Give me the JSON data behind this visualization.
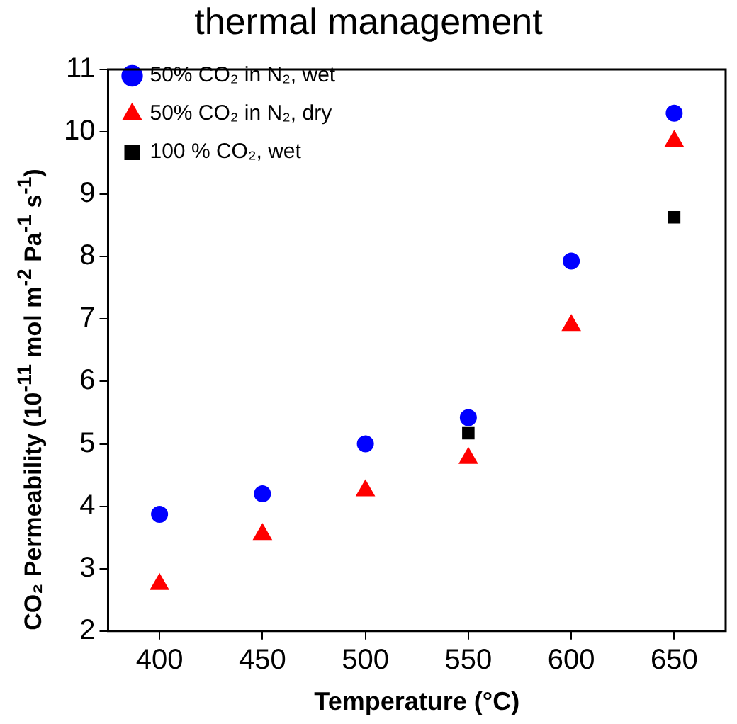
{
  "chart_data": {
    "type": "scatter",
    "title": "thermal management",
    "xlabel": "Temperature (°C)",
    "ylabel": "CO₂ Permeability (10$^{-11}$ mol m$^{-2}$ Pa$^{-1}$ s$^{-1}$)",
    "xlim": [
      375,
      675
    ],
    "xticks": [
      400,
      450,
      500,
      550,
      600,
      650
    ],
    "ylim": [
      2,
      11
    ],
    "yticks": [
      2,
      3,
      4,
      5,
      6,
      7,
      8,
      9,
      10,
      11
    ],
    "grid": false,
    "legend": "top left",
    "series": [
      {
        "name": "50% CO₂ in N₂, wet",
        "color": "#0000ff",
        "marker": "circle",
        "x": [
          400,
          450,
          500,
          550,
          600,
          650
        ],
        "values": [
          3.87,
          4.2,
          5.0,
          5.42,
          7.93,
          10.3
        ]
      },
      {
        "name": "50% CO₂ in N₂, dry",
        "color": "#ff0000",
        "marker": "triangle",
        "x": [
          400,
          450,
          500,
          550,
          600,
          650
        ],
        "values": [
          2.75,
          3.55,
          4.25,
          4.77,
          6.9,
          9.85
        ]
      },
      {
        "name": "100 % CO₂, wet",
        "color": "#000000",
        "marker": "square",
        "x": [
          550,
          650
        ],
        "values": [
          5.17,
          8.63
        ]
      }
    ]
  }
}
